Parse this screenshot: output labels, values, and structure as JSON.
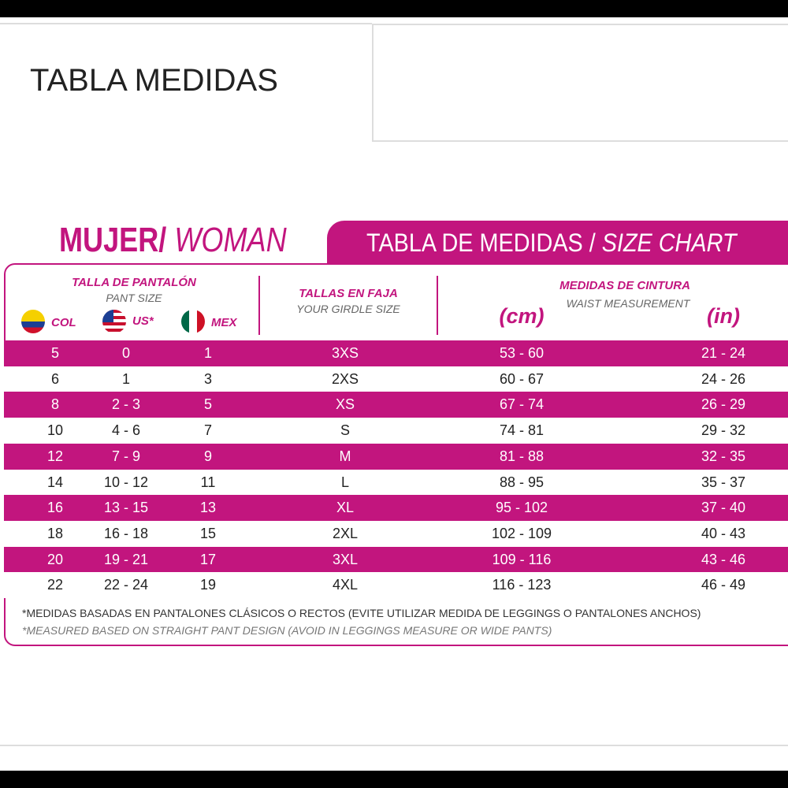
{
  "header": {
    "title": "TABLA MEDIDAS"
  },
  "size_chart": {
    "heading_bold": "MUJER/",
    "heading_italic": "WOMAN",
    "banner_plain": "TABLA DE MEDIDAS /",
    "banner_italic": "SIZE CHART",
    "pant_title": "TALLA DE PANTALÓN",
    "pant_subtitle": "PANT SIZE",
    "countries": [
      "COL",
      "US*",
      "MEX"
    ],
    "girdle_title": "TALLAS EN FAJA",
    "girdle_subtitle": "YOUR GIRDLE SIZE",
    "waist_title": "MEDIDAS DE CINTURA",
    "waist_subtitle": "WAIST MEASUREMENT",
    "units": [
      "(cm)",
      "(in)"
    ],
    "rows": [
      [
        "5",
        "0",
        "1",
        "3XS",
        "53 - 60",
        "21 - 24"
      ],
      [
        "6",
        "1",
        "3",
        "2XS",
        "60 - 67",
        "24 - 26"
      ],
      [
        "8",
        "2 - 3",
        "5",
        "XS",
        "67 - 74",
        "26 - 29"
      ],
      [
        "10",
        "4 - 6",
        "7",
        "S",
        "74 - 81",
        "29 - 32"
      ],
      [
        "12",
        "7 - 9",
        "9",
        "M",
        "81 - 88",
        "32 - 35"
      ],
      [
        "14",
        "10 - 12",
        "11",
        "L",
        "88 - 95",
        "35 - 37"
      ],
      [
        "16",
        "13 - 15",
        "13",
        "XL",
        "95 - 102",
        "37 - 40"
      ],
      [
        "18",
        "16 - 18",
        "15",
        "2XL",
        "102 - 109",
        "40 - 43"
      ],
      [
        "20",
        "19 - 21",
        "17",
        "3XL",
        "109 - 116",
        "43 - 46"
      ],
      [
        "22",
        "22 - 24",
        "19",
        "4XL",
        "116 - 123",
        "46 - 49"
      ]
    ],
    "footnotes": [
      "*MEDIDAS BASADAS EN PANTALONES CLÁSICOS O RECTOS (EVITE UTILIZAR MEDIDA DE LEGGINGS O PANTALONES ANCHOS)",
      "*MEASURED BASED ON STRAIGHT PANT DESIGN (AVOID IN LEGGINGS MEASURE OR WIDE PANTS)"
    ]
  }
}
